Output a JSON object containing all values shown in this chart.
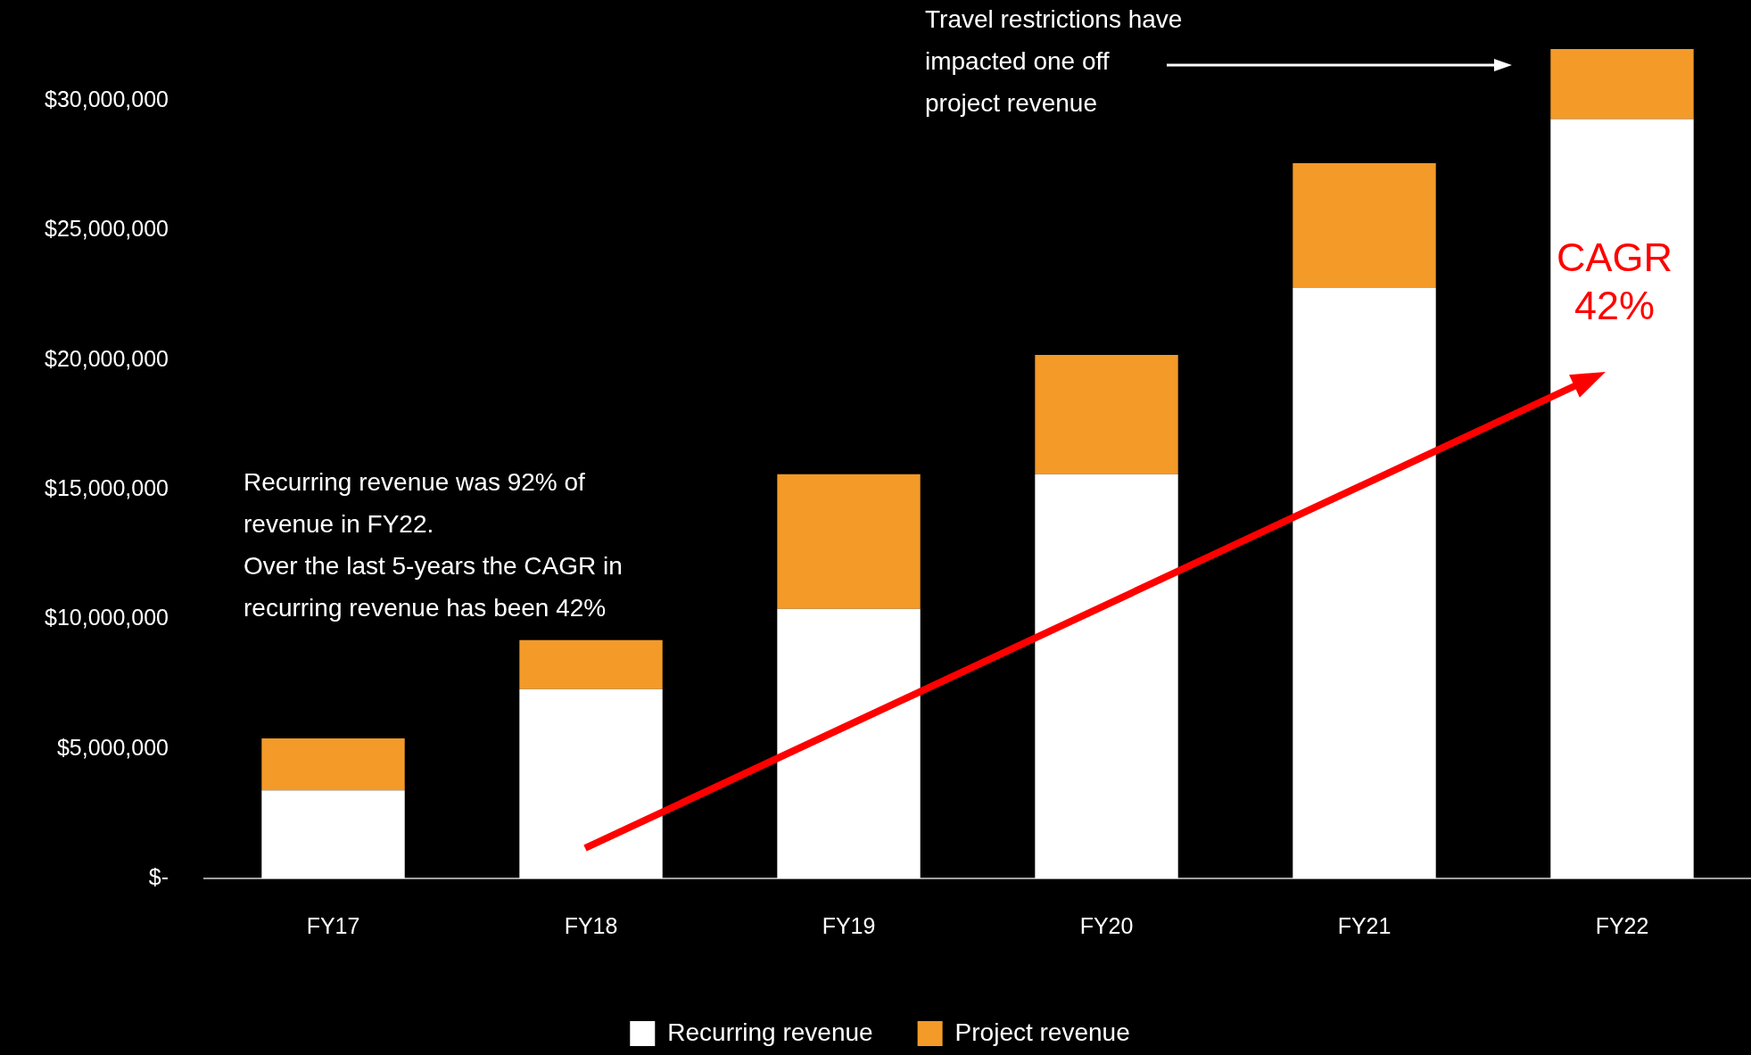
{
  "chart_data": {
    "type": "bar",
    "stacked": true,
    "categories": [
      "FY17",
      "FY18",
      "FY19",
      "FY20",
      "FY21",
      "FY22"
    ],
    "series": [
      {
        "name": "Recurring revenue",
        "color": "#ffffff",
        "values": [
          3400000,
          7300000,
          10400000,
          15600000,
          22800000,
          29300000
        ]
      },
      {
        "name": "Project revenue",
        "color": "#f39a28",
        "values": [
          2000000,
          1900000,
          5200000,
          4600000,
          4800000,
          2700000
        ]
      }
    ],
    "ylim": [
      0,
      32000000
    ],
    "yticks": [
      {
        "value": 0,
        "label": "$-"
      },
      {
        "value": 5000000,
        "label": "$5,000,000"
      },
      {
        "value": 10000000,
        "label": "$10,000,000"
      },
      {
        "value": 15000000,
        "label": "$15,000,000"
      },
      {
        "value": 20000000,
        "label": "$20,000,000"
      },
      {
        "value": 25000000,
        "label": "$25,000,000"
      },
      {
        "value": 30000000,
        "label": "$30,000,000"
      }
    ],
    "grid": false,
    "legend": "bottom",
    "annotations": [
      "Recurring revenue was 92% of\nrevenue in FY22.\nOver the last 5-years the CAGR in\nrecurring revenue has been 42%",
      "Travel restrictions have\nimpacted one off\nproject revenue",
      "CAGR\n42%"
    ]
  }
}
